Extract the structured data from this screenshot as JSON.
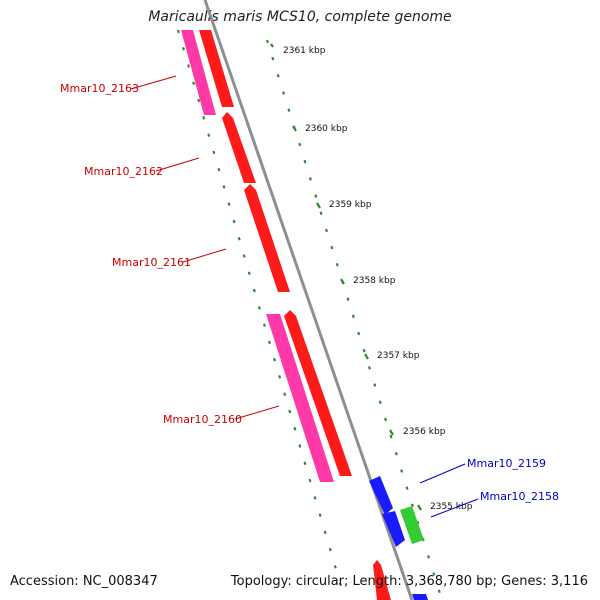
{
  "header": {
    "title": "Maricaulis maris MCS10, complete genome"
  },
  "footer": {
    "accession": "Accession: NC_008347",
    "summary": "Topology: circular; Length: 3,368,780 bp; Genes: 3,116"
  },
  "colors": {
    "backbone": "#8f8f8f",
    "tick_dashes": "#2e8b2e",
    "gene_red": "#ff1a1a",
    "gene_pink": "#ff3aa8",
    "gene_blue": "#1a1aff",
    "gene_green": "#33cc33",
    "label_red": "#cc0000",
    "label_blue": "#0000cc"
  },
  "scale_ticks": [
    "2361 kbp",
    "2360 kbp",
    "2359 kbp",
    "2358 kbp",
    "2357 kbp",
    "2356 kbp",
    "2355 kbp"
  ],
  "gene_labels": [
    "Mmar10_2163",
    "Mmar10_2162",
    "Mmar10_2161",
    "Mmar10_2160",
    "Mmar10_2159",
    "Mmar10_2158"
  ]
}
